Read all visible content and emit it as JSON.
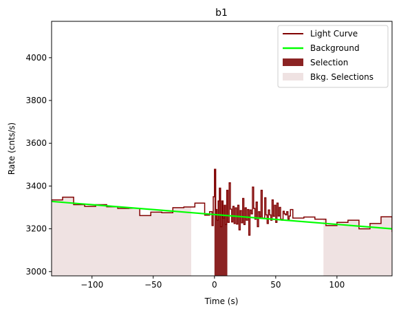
{
  "chart_data": {
    "type": "line",
    "title": "b1",
    "xlabel": "Time (s)",
    "ylabel": "Rate (cnts/s)",
    "xlim": [
      -133,
      145
    ],
    "ylim": [
      2980,
      4170
    ],
    "xticks": [
      -100,
      -50,
      0,
      50,
      100
    ],
    "yticks": [
      3000,
      3200,
      3400,
      3600,
      3800,
      4000
    ],
    "grid": false,
    "legend_position": "top-right",
    "legend": [
      {
        "label": "Light Curve",
        "kind": "line",
        "color": "#800000"
      },
      {
        "label": "Background",
        "kind": "line",
        "color": "#00ff00"
      },
      {
        "label": "Selection",
        "kind": "patch",
        "color": "#8b2323"
      },
      {
        "label": "Bkg. Selections",
        "kind": "patch",
        "color": "#efe2e2"
      }
    ],
    "colors": {
      "light_curve": "#800000",
      "background": "#00ff00",
      "selection": "#8b2323",
      "bkg_selection": "#efe2e2"
    },
    "series": [
      {
        "name": "Light Curve",
        "type": "step",
        "x": [
          -133,
          -124,
          -115,
          -106,
          -97,
          -88,
          -79,
          -70,
          -61,
          -52,
          -43,
          -34,
          -25,
          -16,
          -8,
          -4,
          -2,
          -1,
          0,
          1,
          2,
          3,
          4,
          5,
          6,
          7,
          8,
          9,
          10,
          11,
          12,
          13,
          14,
          15,
          16,
          17,
          18,
          19,
          20,
          21,
          22,
          23,
          24,
          25,
          26,
          27,
          28,
          29,
          30,
          31,
          32,
          33,
          34,
          35,
          36,
          37,
          38,
          39,
          40,
          41,
          42,
          43,
          44,
          45,
          46,
          47,
          48,
          49,
          50,
          51,
          52,
          53,
          54,
          55,
          56,
          57,
          58,
          59,
          60,
          61,
          62,
          64,
          73,
          82,
          91,
          100,
          109,
          118,
          127,
          136,
          145
        ],
        "y": [
          3335,
          3348,
          3313,
          3305,
          3313,
          3303,
          3295,
          3296,
          3262,
          3278,
          3275,
          3299,
          3302,
          3320,
          3264,
          3280,
          3215,
          3350,
          3478,
          3290,
          3240,
          3330,
          3390,
          3210,
          3330,
          3250,
          3310,
          3220,
          3380,
          3230,
          3415,
          3292,
          3232,
          3305,
          3225,
          3298,
          3222,
          3310,
          3195,
          3285,
          3228,
          3342,
          3220,
          3298,
          3240,
          3290,
          3170,
          3288,
          3270,
          3395,
          3295,
          3245,
          3325,
          3210,
          3280,
          3255,
          3380,
          3248,
          3250,
          3345,
          3265,
          3225,
          3288,
          3265,
          3240,
          3335,
          3258,
          3310,
          3230,
          3320,
          3260,
          3300,
          3245,
          3240,
          3282,
          3270,
          3265,
          3280,
          3245,
          3260,
          3290,
          3250,
          3255,
          3245,
          3215,
          3230,
          3240,
          3200,
          3225,
          3256,
          3185
        ]
      },
      {
        "name": "Background",
        "type": "line",
        "x": [
          -133,
          145
        ],
        "y": [
          3328,
          3200
        ]
      }
    ],
    "selection": [
      0,
      10.5
    ],
    "bkg_selections": [
      [
        -133,
        -19
      ],
      [
        89,
        145
      ]
    ]
  }
}
